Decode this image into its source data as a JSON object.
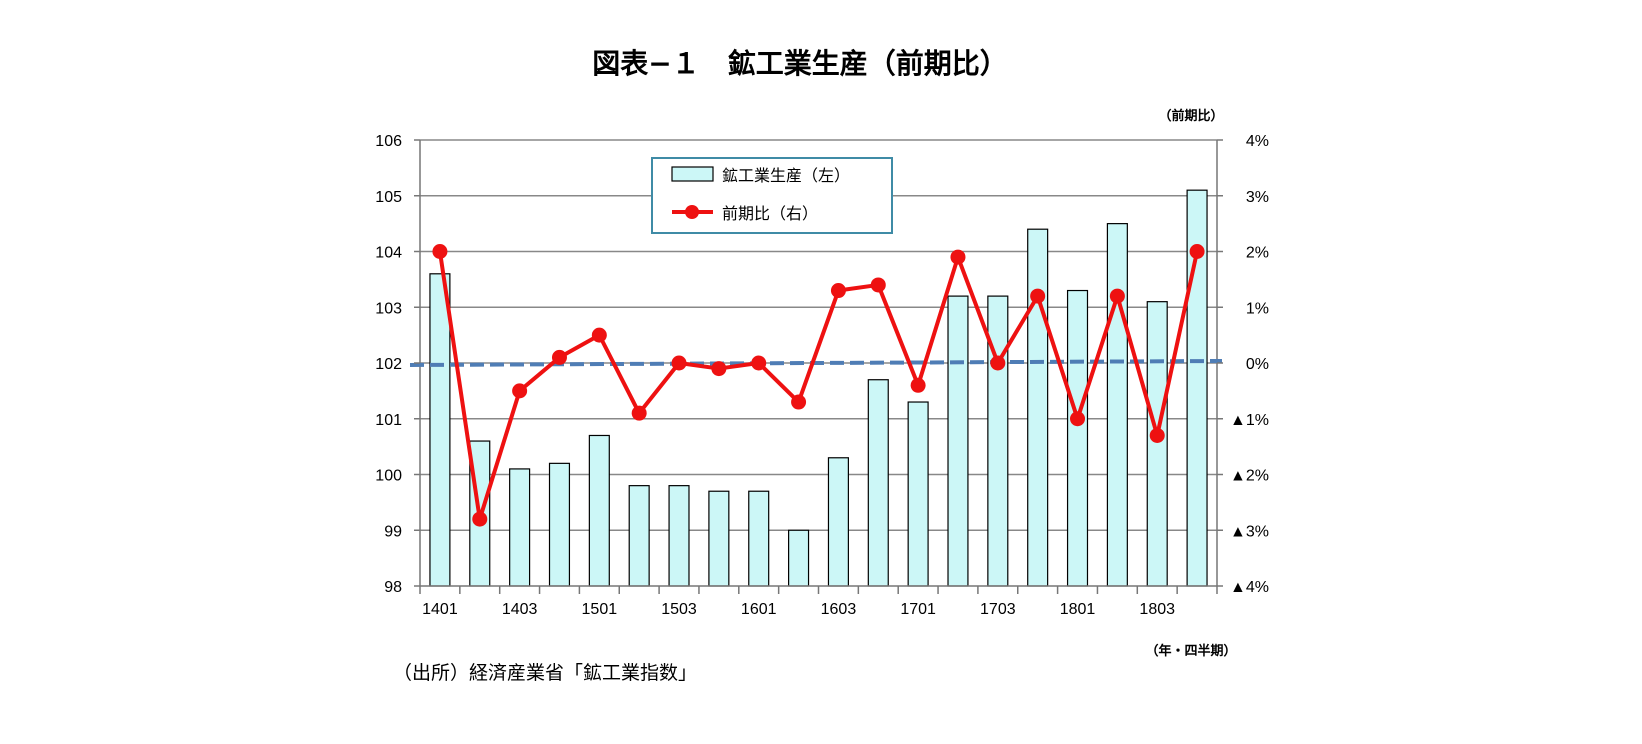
{
  "title": "図表−１　鉱工業生産（前期比）",
  "source": "（出所）経済産業省「鉱工業指数」",
  "colors": {
    "bar_fill": "#ccf7f7",
    "bar_stroke": "#000000",
    "line": "#ee1111",
    "zero_line": "#4f7db5",
    "legend_border": "#3f8ba6",
    "grid": "#888888"
  },
  "chart_data": {
    "type": "bar",
    "title": "図表−１　鉱工業生産（前期比）",
    "x_unit_label": "（年・四半期）",
    "categories": [
      "1401",
      "1402",
      "1403",
      "1404",
      "1501",
      "1502",
      "1503",
      "1504",
      "1601",
      "1602",
      "1603",
      "1604",
      "1701",
      "1702",
      "1703",
      "1704",
      "1801",
      "1802",
      "1803",
      "1804"
    ],
    "x_tick_labels": [
      "1401",
      "",
      "1403",
      "",
      "1501",
      "",
      "1503",
      "",
      "1601",
      "",
      "1603",
      "",
      "1701",
      "",
      "1703",
      "",
      "1801",
      "",
      "1803",
      ""
    ],
    "left_axis": {
      "ylim": [
        98,
        106
      ],
      "ticks": [
        98,
        99,
        100,
        101,
        102,
        103,
        104,
        105,
        106
      ],
      "tick_labels": [
        "98",
        "99",
        "100",
        "101",
        "102",
        "103",
        "104",
        "105",
        "106"
      ]
    },
    "right_axis": {
      "label": "（前期比）",
      "ylim": [
        -4,
        4
      ],
      "ticks": [
        -4,
        -3,
        -2,
        -1,
        0,
        1,
        2,
        3,
        4
      ],
      "tick_labels": [
        "▲4%",
        "▲3%",
        "▲2%",
        "▲1%",
        "0%",
        "1%",
        "2%",
        "3%",
        "4%"
      ]
    },
    "grid": true,
    "legend_position": "top-center",
    "series": [
      {
        "name": "鉱工業生産（左）",
        "type": "bar",
        "axis": "left",
        "values": [
          103.6,
          100.6,
          100.1,
          100.2,
          100.7,
          99.8,
          99.8,
          99.7,
          99.7,
          99.0,
          100.3,
          101.7,
          101.3,
          103.2,
          103.2,
          104.4,
          103.3,
          104.5,
          103.1,
          105.1
        ]
      },
      {
        "name": "前期比（右）",
        "type": "line",
        "axis": "right",
        "values": [
          2.0,
          -2.8,
          -0.5,
          0.1,
          0.5,
          -0.9,
          0.0,
          -0.1,
          0.0,
          -0.7,
          1.3,
          1.4,
          -0.4,
          1.9,
          0.0,
          1.2,
          -1.0,
          1.2,
          -1.3,
          2.0
        ]
      }
    ]
  }
}
